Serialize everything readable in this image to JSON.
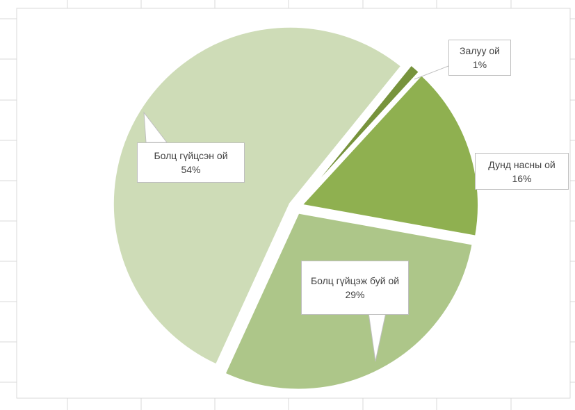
{
  "chart_data": {
    "type": "pie",
    "categories": [
      "Залуу ой",
      "Дунд насны ой",
      "Болц гүйцэж буй ой",
      "Болц гүйцсэн ой"
    ],
    "values": [
      1,
      16,
      29,
      54
    ],
    "value_labels": [
      "1%",
      "16%",
      "29%",
      "54%"
    ],
    "colors": [
      "#77933c",
      "#8fb050",
      "#adc689",
      "#cedcb7"
    ]
  }
}
